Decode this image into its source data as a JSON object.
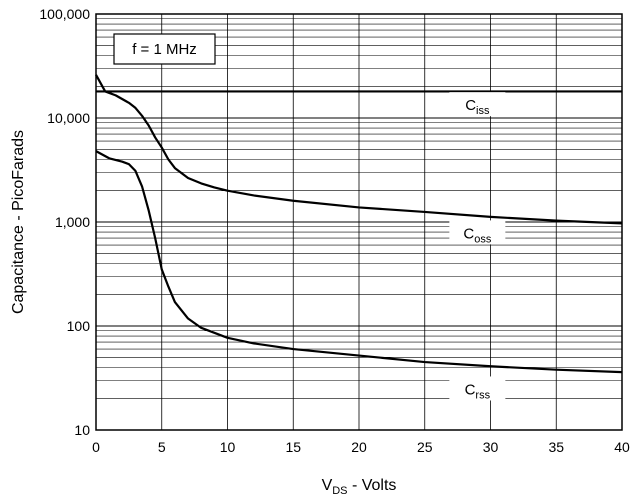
{
  "chart_data": {
    "type": "line",
    "xlabel": {
      "main": "V",
      "sub": "DS",
      "rest": " - Volts"
    },
    "ylabel": "Capacitance - PicoFarads",
    "xlim": [
      0,
      40
    ],
    "ylim": [
      10,
      100000
    ],
    "y_scale": "log",
    "grid": true,
    "x_ticks": [
      "0",
      "5",
      "10",
      "15",
      "20",
      "25",
      "30",
      "35",
      "40"
    ],
    "y_ticks": [
      {
        "value": 10,
        "label": "10"
      },
      {
        "value": 100,
        "label": "100"
      },
      {
        "value": 1000,
        "label": "1,000"
      },
      {
        "value": 10000,
        "label": "10,000"
      },
      {
        "value": 100000,
        "label": "100,000"
      }
    ],
    "annotation": "f = 1 MHz",
    "series": [
      {
        "name": "Ciss",
        "label_main": "C",
        "label_sub": "iss",
        "label_at": {
          "x": 29,
          "y": 13000
        },
        "points": [
          [
            0,
            18000
          ],
          [
            40,
            18000
          ]
        ]
      },
      {
        "name": "Coss",
        "label_main": "C",
        "label_sub": "oss",
        "label_at": {
          "x": 29,
          "y": 760
        },
        "points": [
          [
            0,
            26000
          ],
          [
            0.7,
            18000
          ],
          [
            1.5,
            16500
          ],
          [
            2.5,
            14000
          ],
          [
            3,
            12500
          ],
          [
            3.5,
            10500
          ],
          [
            4,
            8500
          ],
          [
            4.5,
            6500
          ],
          [
            5,
            5200
          ],
          [
            5.5,
            4000
          ],
          [
            6,
            3300
          ],
          [
            7,
            2650
          ],
          [
            8,
            2350
          ],
          [
            9,
            2150
          ],
          [
            10,
            2000
          ],
          [
            12,
            1800
          ],
          [
            15,
            1600
          ],
          [
            20,
            1380
          ],
          [
            25,
            1250
          ],
          [
            30,
            1120
          ],
          [
            35,
            1030
          ],
          [
            40,
            970
          ]
        ]
      },
      {
        "name": "Crss",
        "label_main": "C",
        "label_sub": "rss",
        "label_at": {
          "x": 29,
          "y": 24
        },
        "points": [
          [
            0,
            4800
          ],
          [
            1,
            4100
          ],
          [
            2,
            3800
          ],
          [
            2.5,
            3600
          ],
          [
            3,
            3100
          ],
          [
            3.5,
            2200
          ],
          [
            4,
            1300
          ],
          [
            4.5,
            700
          ],
          [
            5,
            350
          ],
          [
            5.5,
            240
          ],
          [
            6,
            170
          ],
          [
            7,
            118
          ],
          [
            8,
            96
          ],
          [
            9,
            86
          ],
          [
            10,
            77
          ],
          [
            12,
            68
          ],
          [
            15,
            60
          ],
          [
            20,
            52
          ],
          [
            25,
            45
          ],
          [
            30,
            41
          ],
          [
            35,
            38
          ],
          [
            40,
            36
          ]
        ]
      }
    ]
  }
}
